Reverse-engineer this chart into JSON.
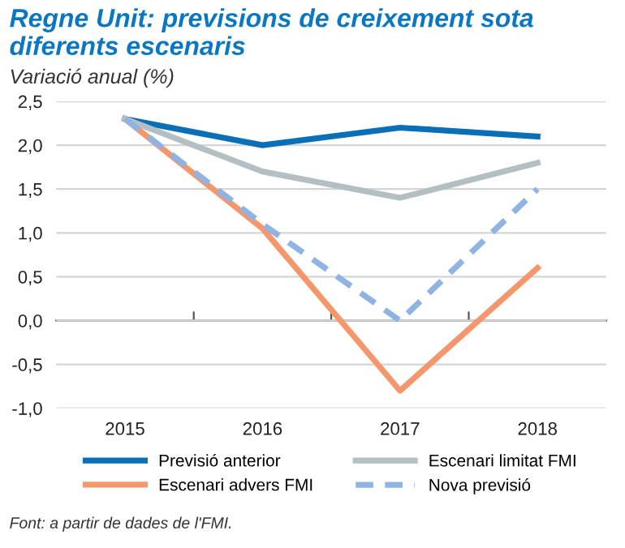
{
  "chart_data": {
    "type": "line",
    "title": "Regne Unit: previsions de creixement sota diferents escenaris",
    "subtitle": "Variació anual (%)",
    "categories": [
      "2015",
      "2016",
      "2017",
      "2018"
    ],
    "series": [
      {
        "name": "Previsió anterior",
        "color": "#0a6fb7",
        "values": [
          2.3,
          2.0,
          2.2,
          2.1
        ]
      },
      {
        "name": "Escenari advers FMI",
        "color": "#f4976c",
        "values": [
          2.3,
          1.05,
          -0.8,
          0.6
        ]
      },
      {
        "name": "Escenari limitat FMI",
        "color": "#b4bfc3",
        "values": [
          2.3,
          1.7,
          1.4,
          1.8
        ]
      },
      {
        "name": "Nova previsió",
        "color": "#8fb3e3",
        "values": [
          2.3,
          1.1,
          0.0,
          1.5
        ],
        "line_style": "dashed"
      }
    ],
    "ylim": [
      -1.0,
      2.5
    ],
    "yticks": [
      {
        "value": -1.0,
        "label": "-1,0"
      },
      {
        "value": -0.5,
        "label": "-0,5"
      },
      {
        "value": 0.0,
        "label": "0,0"
      },
      {
        "value": 0.5,
        "label": "0,5"
      },
      {
        "value": 1.0,
        "label": "1,0"
      },
      {
        "value": 1.5,
        "label": "1,5"
      },
      {
        "value": 2.0,
        "label": "2,0"
      },
      {
        "value": 2.5,
        "label": "2,5"
      }
    ],
    "grid": "y",
    "legend": "bottom",
    "marker": "none",
    "annotations": [
      "Font: a partir de dades de l'FMI."
    ]
  }
}
